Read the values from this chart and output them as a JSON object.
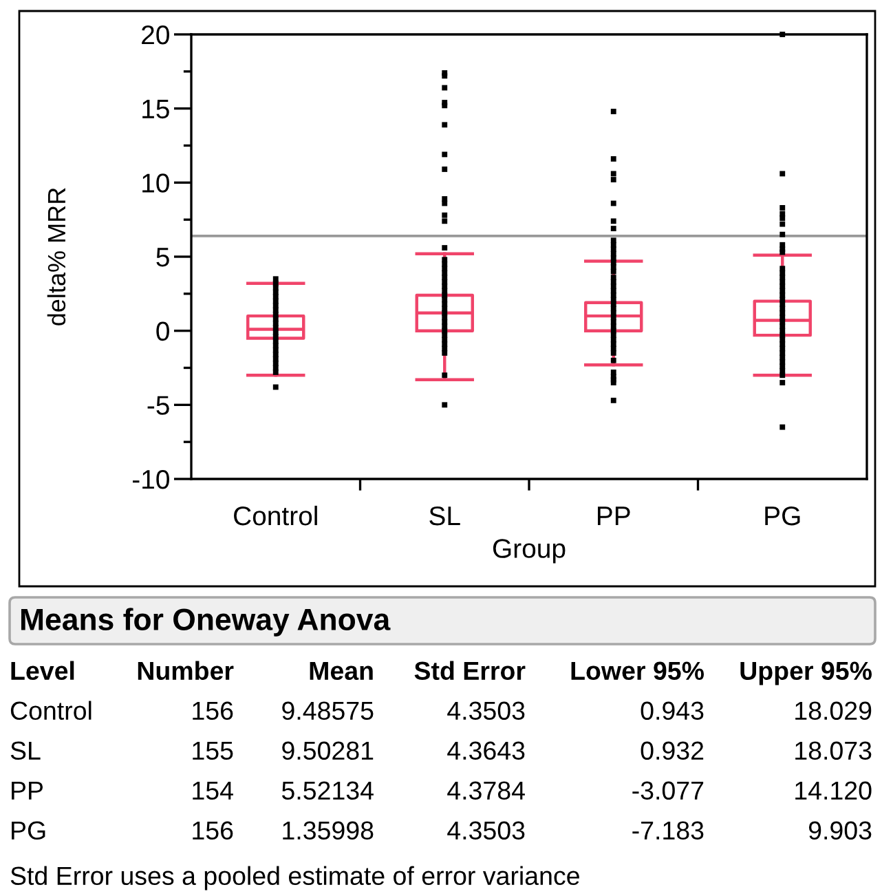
{
  "chart_data": [
    {
      "type": "box",
      "xlabel": "Group",
      "ylabel": "delta% MRR",
      "categories": [
        "Control",
        "SL",
        "PP",
        "PG"
      ],
      "ylim": [
        -10,
        20
      ],
      "yticks": [
        -10,
        {
          "value": -7.5,
          "label": null
        },
        -5,
        {
          "value": -2.5,
          "label": null
        },
        0,
        {
          "value": 2.5,
          "label": null
        },
        5,
        {
          "value": 7.5,
          "label": null
        },
        10,
        {
          "value": 12.5,
          "label": null
        },
        15,
        {
          "value": 17.5,
          "label": null
        },
        20
      ],
      "grid": false,
      "ref_lines": [
        {
          "axis": "y",
          "value": 6.4,
          "color": "#999999"
        }
      ],
      "series": [
        {
          "type": "box",
          "color": "#f0446a",
          "boxes": [
            {
              "low": -3.0,
              "q1": -0.5,
              "median": 0.1,
              "q3": 1.0,
              "high": 3.2
            },
            {
              "low": -3.3,
              "q1": 0.0,
              "median": 1.2,
              "q3": 2.4,
              "high": 5.2
            },
            {
              "low": -2.3,
              "q1": 0.0,
              "median": 1.0,
              "q3": 1.9,
              "high": 4.7
            },
            {
              "low": -3.0,
              "q1": -0.3,
              "median": 0.7,
              "q3": 2.0,
              "high": 5.1
            }
          ]
        },
        {
          "type": "scatter",
          "color": "#000000",
          "marker": "square",
          "x": [
            "Control",
            "Control",
            "Control",
            "Control",
            "Control",
            "Control",
            "Control",
            "Control",
            "Control",
            "Control",
            "Control",
            "Control",
            "Control",
            "Control",
            "Control",
            "Control",
            "Control",
            "Control",
            "Control",
            "Control",
            "Control",
            "Control",
            "Control"
          ],
          "values": [
            3.5,
            3.2,
            2.9,
            2.6,
            2.3,
            2.0,
            1.7,
            1.4,
            1.1,
            0.8,
            0.5,
            0.2,
            -0.1,
            -0.4,
            -0.7,
            -1.0,
            -1.3,
            -1.6,
            -1.9,
            -2.2,
            -2.5,
            -2.8,
            -3.8
          ]
        },
        {
          "type": "scatter",
          "color": "#000000",
          "marker": "square",
          "x": [
            "SL",
            "SL",
            "SL",
            "SL",
            "SL",
            "SL",
            "SL",
            "SL",
            "SL",
            "SL",
            "SL",
            "SL",
            "SL",
            "SL",
            "SL",
            "SL",
            "SL",
            "SL",
            "SL",
            "SL",
            "SL",
            "SL",
            "SL",
            "SL",
            "SL",
            "SL",
            "SL",
            "SL",
            "SL",
            "SL",
            "SL",
            "SL",
            "SL",
            "SL",
            "SL",
            "SL",
            "SL"
          ],
          "values": [
            17.4,
            17.2,
            16.4,
            15.4,
            15.2,
            13.9,
            11.9,
            10.9,
            8.9,
            8.6,
            7.8,
            7.4,
            5.6,
            4.8,
            4.5,
            4.2,
            3.9,
            3.6,
            3.3,
            3.0,
            2.7,
            2.4,
            2.1,
            1.8,
            1.5,
            1.2,
            0.9,
            0.6,
            0.3,
            0.0,
            -0.3,
            -0.6,
            -0.9,
            -1.2,
            -1.5,
            -3.0,
            -5.0
          ]
        },
        {
          "type": "scatter",
          "color": "#000000",
          "marker": "square",
          "x": [
            "PP",
            "PP",
            "PP",
            "PP",
            "PP",
            "PP",
            "PP",
            "PP",
            "PP",
            "PP",
            "PP",
            "PP",
            "PP",
            "PP",
            "PP",
            "PP",
            "PP",
            "PP",
            "PP",
            "PP",
            "PP",
            "PP",
            "PP",
            "PP",
            "PP",
            "PP",
            "PP",
            "PP",
            "PP",
            "PP",
            "PP",
            "PP",
            "PP",
            "PP",
            "PP",
            "PP",
            "PP",
            "PP",
            "PP"
          ],
          "values": [
            14.8,
            11.6,
            10.6,
            10.2,
            8.6,
            7.4,
            6.9,
            6.1,
            5.8,
            5.5,
            5.2,
            4.9,
            4.6,
            4.3,
            4.0,
            3.6,
            3.3,
            3.0,
            2.7,
            2.4,
            2.1,
            1.8,
            1.5,
            1.2,
            0.9,
            0.6,
            0.3,
            0.0,
            -0.3,
            -0.6,
            -0.9,
            -1.2,
            -1.5,
            -2.0,
            -2.8,
            -3.1,
            -3.3,
            -3.5,
            -4.7
          ]
        },
        {
          "type": "scatter",
          "color": "#000000",
          "marker": "square",
          "x": [
            "PG",
            "PG",
            "PG",
            "PG",
            "PG",
            "PG",
            "PG",
            "PG",
            "PG",
            "PG",
            "PG",
            "PG",
            "PG",
            "PG",
            "PG",
            "PG",
            "PG",
            "PG",
            "PG",
            "PG",
            "PG",
            "PG",
            "PG",
            "PG",
            "PG",
            "PG",
            "PG",
            "PG",
            "PG",
            "PG",
            "PG",
            "PG",
            "PG",
            "PG",
            "PG",
            "PG",
            "PG"
          ],
          "values": [
            20.0,
            10.6,
            8.3,
            7.9,
            7.6,
            7.2,
            6.5,
            5.8,
            5.5,
            5.3,
            4.2,
            3.9,
            3.6,
            3.3,
            3.0,
            2.7,
            2.4,
            2.1,
            1.8,
            1.5,
            1.2,
            0.9,
            0.6,
            0.3,
            0.0,
            -0.3,
            -0.6,
            -0.9,
            -1.2,
            -1.5,
            -1.8,
            -2.1,
            -2.4,
            -2.7,
            -3.0,
            -3.5,
            -6.5
          ]
        }
      ]
    },
    {
      "type": "other",
      "title": "Means for Oneway Anova",
      "annotations": [
        "Level",
        "Number",
        "Mean",
        "Std Error",
        "Lower 95%",
        "Upper 95%",
        "Control",
        "156",
        "9.48575",
        "4.3503",
        "0.943",
        "18.029",
        "SL",
        "155",
        "9.50281",
        "4.3643",
        "0.932",
        "18.073",
        "PP",
        "154",
        "5.52134",
        "4.3784",
        "-3.077",
        "14.120",
        "PG",
        "156",
        "1.35998",
        "4.3503",
        "-7.183",
        "9.903",
        "Std Error uses a pooled estimate of error variance"
      ]
    }
  ]
}
